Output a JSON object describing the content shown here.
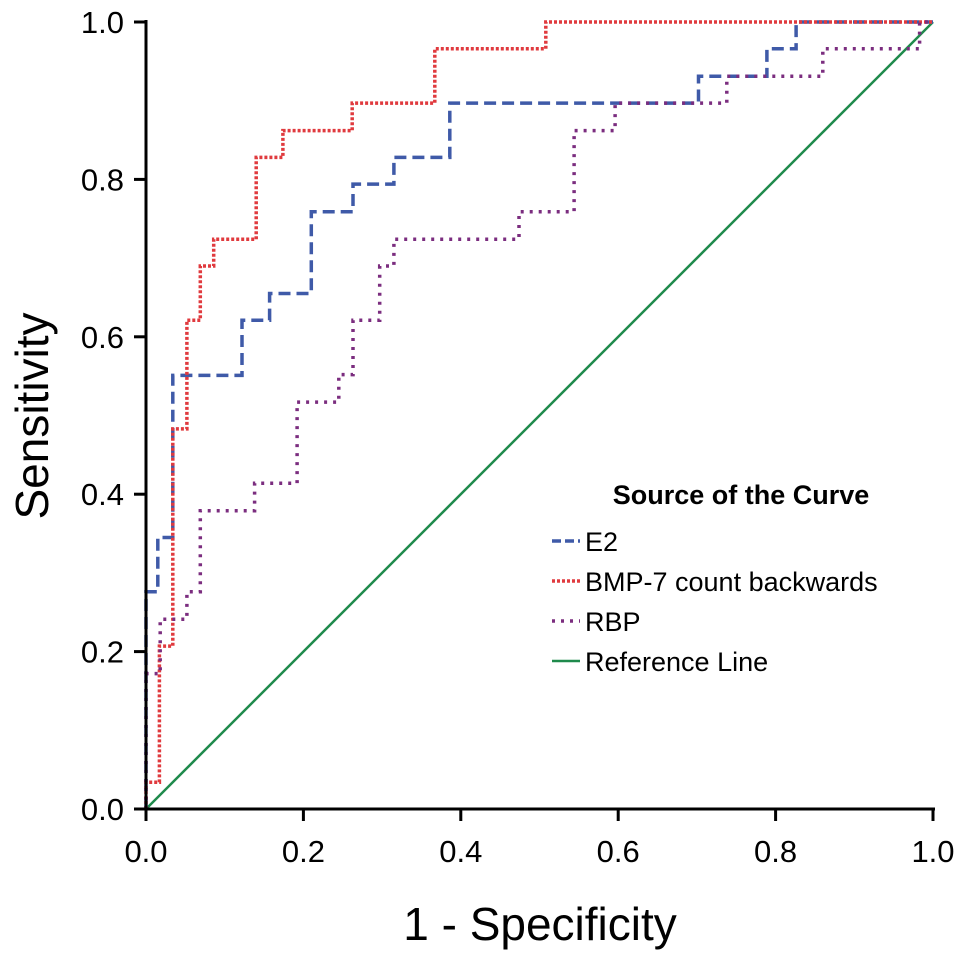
{
  "chart_data": {
    "type": "line",
    "title": "",
    "xlabel": "1 - Specificity",
    "ylabel": "Sensitivity",
    "xlim": [
      0,
      1
    ],
    "ylim": [
      0,
      1
    ],
    "xticks": [
      "0.0",
      "0.2",
      "0.4",
      "0.6",
      "0.8",
      "1.0"
    ],
    "yticks": [
      "0.0",
      "0.2",
      "0.4",
      "0.6",
      "0.8",
      "1.0"
    ],
    "grid": false,
    "legend": {
      "title": "Source of the Curve",
      "position": "center-right",
      "entries": [
        "E2",
        "BMP-7 count backwards",
        "RBP",
        "Reference Line"
      ]
    },
    "series": [
      {
        "name": "E2",
        "color": "#3f5aa8",
        "style": "dashed",
        "x": [
          0,
          0,
          0.015,
          0.015,
          0.034,
          0.034,
          0.122,
          0.122,
          0.157,
          0.157,
          0.21,
          0.21,
          0.263,
          0.263,
          0.315,
          0.315,
          0.386,
          0.386,
          0.702,
          0.702,
          0.789,
          0.789,
          0.826,
          0.826,
          1
        ],
        "y": [
          0,
          0.276,
          0.276,
          0.345,
          0.345,
          0.551,
          0.551,
          0.621,
          0.621,
          0.655,
          0.655,
          0.759,
          0.759,
          0.794,
          0.794,
          0.828,
          0.828,
          0.897,
          0.897,
          0.931,
          0.931,
          0.966,
          0.966,
          1,
          1
        ]
      },
      {
        "name": "BMP-7 count backwards",
        "color": "#e03a3e",
        "style": "dotted-dense",
        "x": [
          0,
          0,
          0.017,
          0.017,
          0.034,
          0.034,
          0.052,
          0.052,
          0.069,
          0.069,
          0.086,
          0.086,
          0.14,
          0.14,
          0.174,
          0.174,
          0.262,
          0.262,
          0.367,
          0.367,
          0.508,
          0.508,
          1
        ],
        "y": [
          0,
          0.034,
          0.034,
          0.207,
          0.207,
          0.483,
          0.483,
          0.621,
          0.621,
          0.69,
          0.69,
          0.724,
          0.724,
          0.828,
          0.828,
          0.862,
          0.862,
          0.897,
          0.897,
          0.966,
          0.966,
          1,
          1
        ]
      },
      {
        "name": "RBP",
        "color": "#7b2d7f",
        "style": "dotted-sparse",
        "x": [
          0,
          0,
          0.018,
          0.018,
          0.052,
          0.052,
          0.069,
          0.069,
          0.138,
          0.138,
          0.192,
          0.192,
          0.245,
          0.245,
          0.263,
          0.263,
          0.297,
          0.297,
          0.315,
          0.315,
          0.474,
          0.474,
          0.544,
          0.544,
          0.596,
          0.596,
          0.738,
          0.738,
          0.86,
          0.86,
          0.983,
          0.983,
          1
        ],
        "y": [
          0,
          0.172,
          0.172,
          0.241,
          0.241,
          0.276,
          0.276,
          0.379,
          0.379,
          0.414,
          0.414,
          0.517,
          0.517,
          0.552,
          0.552,
          0.621,
          0.621,
          0.69,
          0.69,
          0.724,
          0.724,
          0.759,
          0.759,
          0.862,
          0.862,
          0.897,
          0.897,
          0.931,
          0.931,
          0.966,
          0.966,
          1,
          1
        ]
      },
      {
        "name": "Reference Line",
        "color": "#1f8a4c",
        "style": "solid",
        "x": [
          0,
          1
        ],
        "y": [
          0,
          1
        ]
      }
    ]
  }
}
